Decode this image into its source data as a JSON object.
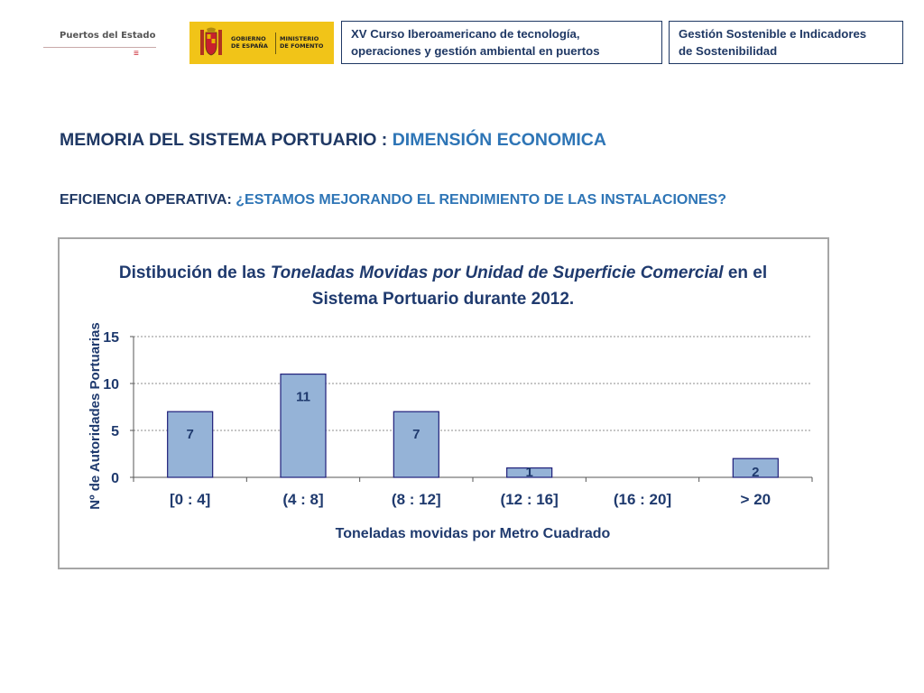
{
  "header": {
    "logo_puertos_text": "Puertos del Estado",
    "logo_gobierno": [
      "GOBIERNO",
      "DE ESPAÑA"
    ],
    "logo_ministerio": [
      "MINISTERIO",
      "DE FOMENTO"
    ],
    "box1": [
      "XV Curso Iberoamericano de tecnología,",
      "operaciones y gestión ambiental en puertos"
    ],
    "box2": [
      "Gestión Sostenible e Indicadores",
      "de Sostenibilidad"
    ]
  },
  "page": {
    "title_main": "MEMORIA DEL SISTEMA PORTUARIO : ",
    "title_accent": "DIMENSIÓN ECONOMICA",
    "subtitle_main": "EFICIENCIA OPERATIVA: ",
    "subtitle_accent": "¿ESTAMOS MEJORANDO EL RENDIMIENTO DE LAS INSTALACIONES?"
  },
  "colors": {
    "navy": "#1f3864",
    "accent": "#2e75b6",
    "bar_fill": "#95b3d7",
    "bar_stroke": "#1f1f7a",
    "chart_text": "#1f3a6e"
  },
  "chart_data": {
    "type": "bar",
    "title_parts": [
      {
        "text": "Distibución de las ",
        "italic": false
      },
      {
        "text": "Toneladas Movidas por Unidad de Superficie Comercial",
        "italic": true
      },
      {
        "text": " en el",
        "italic": false
      }
    ],
    "title_line2": "Sistema Portuario durante 2012.",
    "categories": [
      "[0 : 4]",
      "(4 : 8]",
      "(8 : 12]",
      "(12 : 16]",
      "(16 : 20]",
      "> 20"
    ],
    "values": [
      7,
      11,
      7,
      1,
      0,
      2
    ],
    "data_labels": [
      "7",
      "11",
      "7",
      "1",
      "",
      "2"
    ],
    "xlabel": "Toneladas movidas por Metro Cuadrado",
    "ylabel": "Nº de Autoridades Portuarias",
    "ylim": [
      0,
      15
    ],
    "yticks": [
      0,
      5,
      10,
      15
    ],
    "grid": true,
    "legend": "none"
  }
}
